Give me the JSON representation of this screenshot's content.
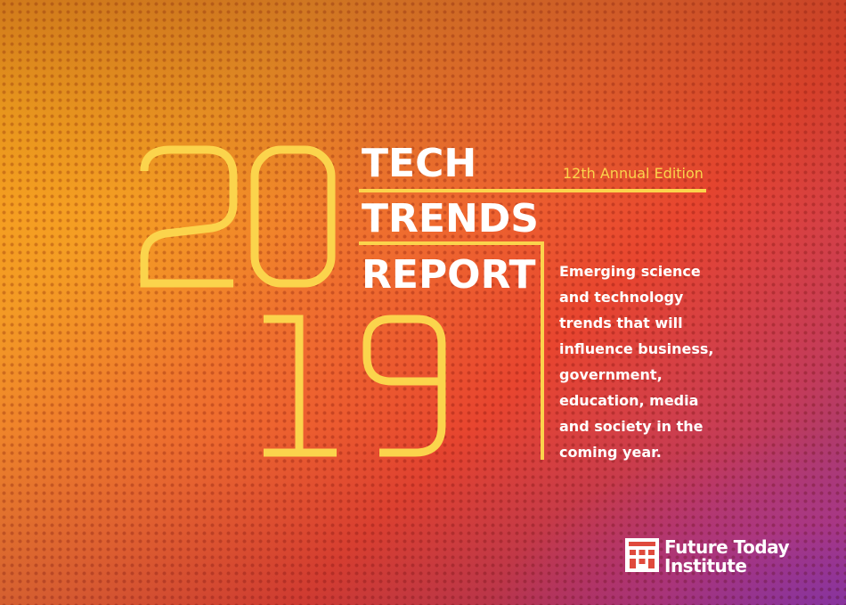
{
  "year": {
    "top_digits": "20",
    "bottom_digits": "19",
    "color": "#fbd44c"
  },
  "title": {
    "line1": "TECH",
    "line2": "TRENDS",
    "line3": "REPORT"
  },
  "edition": "12th Annual Edition",
  "tagline": [
    "Emerging science",
    "and technology",
    "trends that will",
    "influence business,",
    "government,",
    "education, media",
    "and society in the",
    "coming year."
  ],
  "publisher": {
    "line1": "Future Today",
    "line2": "Institute",
    "logo_icon": "building-grid-icon"
  },
  "colors": {
    "accent_yellow": "#fbd44c",
    "text_white": "#ffffff",
    "gradient_orange": "#f09328",
    "gradient_red": "#e8452f",
    "gradient_purple": "#8a3a8c"
  }
}
